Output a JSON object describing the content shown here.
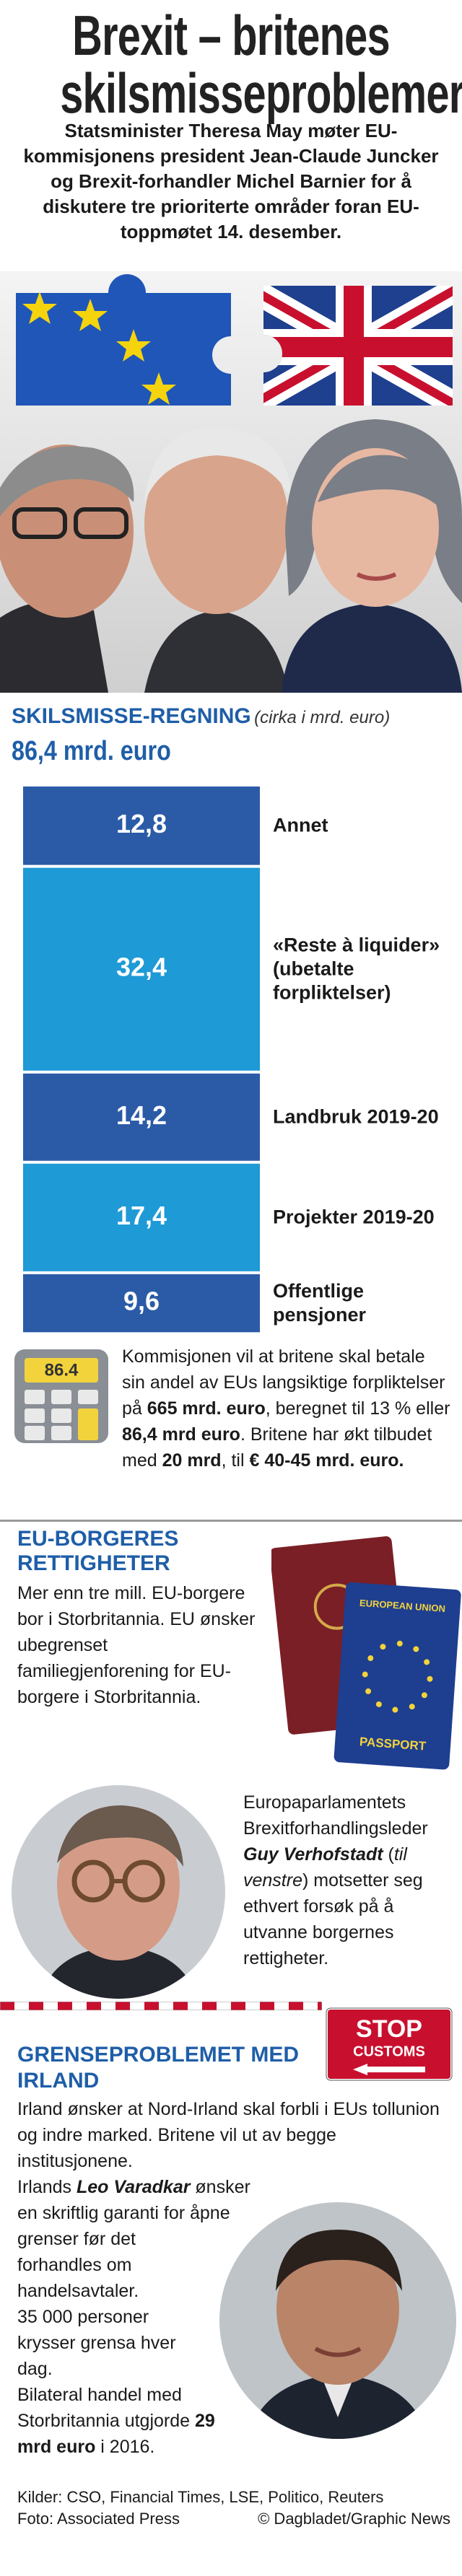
{
  "header": {
    "title_lines": [
      "Brexit – britenes",
      "skilsmisseproblemer"
    ],
    "intro": "Statsminister Theresa May møter EU-kommisjonens president Jean-Claude Juncker og Brexit-forhandler Michel Barnier for å diskutere tre prioriterte områder foran EU-toppmøtet 14. desember."
  },
  "chart_data": {
    "type": "bar",
    "stacked": true,
    "title": "SKILSMISSE-REGNING",
    "subtitle": "(cirka i mrd. euro)",
    "total": "86,4 mrd. euro",
    "categories": [
      "Annet",
      "«Reste à liquider» (ubetalte forpliktelser)",
      "Landbruk 2019-20",
      "Projekter 2019-20",
      "Offentlige pensjoner"
    ],
    "values": [
      12.8,
      32.4,
      14.2,
      17.4,
      9.6
    ],
    "value_labels": [
      "12,8",
      "32,4",
      "14,2",
      "17,4",
      "9,6"
    ],
    "colors": [
      "#2b5ba7",
      "#1e9ad6",
      "#2b5ba7",
      "#1e9ad6",
      "#2b5ba7"
    ]
  },
  "bill_note": {
    "calculator_display": "86.4",
    "runs": [
      {
        "text": "Kommisjonen vil at britene skal betale sin andel av EUs lang­siktige forpliktelser på ",
        "style": "normal"
      },
      {
        "text": "665 mrd. euro",
        "style": "bold"
      },
      {
        "text": ", beregnet til 13 % eller ",
        "style": "normal"
      },
      {
        "text": "86,4 mrd euro",
        "style": "bold"
      },
      {
        "text": ". Britene har økt tilbudet med ",
        "style": "normal"
      },
      {
        "text": "20 mrd",
        "style": "bold"
      },
      {
        "text": ", til ",
        "style": "normal"
      },
      {
        "text": "€ 40-45 mrd. euro.",
        "style": "bold"
      }
    ]
  },
  "citizens": {
    "title": "EU-BORGERES RETTIGHETER",
    "text": "Mer enn tre mill. EU-borgere bor i Storbritannia. EU ønsker ubegrenset familiegjenforening for EU-borgere i Storbritannia.",
    "passport_labels": [
      "EUROPEAN UNION",
      "PASSPORT"
    ],
    "caption": [
      {
        "text": "Europaparlamentets Brexitforhandlingsleder ",
        "style": "normal"
      },
      {
        "text": "Guy Verhofstadt",
        "style": "bold-italic"
      },
      {
        "text": " (",
        "style": "normal"
      },
      {
        "text": "til venstre",
        "style": "italic"
      },
      {
        "text": ") motsetter seg ethvert forsøk på å utvanne borgernes rettigheter.",
        "style": "normal"
      }
    ]
  },
  "border": {
    "sign": [
      "STOP",
      "CUSTOMS"
    ],
    "title": "GRENSEPROBLEMET MED IRLAND",
    "intro": "Irland ønsker at Nord-Irland skal forbli i EUs tollunion og indre marked. Britene vil ut av begge institusjonene.",
    "paragraphs": [
      [
        {
          "text": "Irlands ",
          "style": "normal"
        },
        {
          "text": "Leo Varadkar",
          "style": "bold-italic"
        },
        {
          "text": " ønsker en skriftlig garanti for åpne grenser før det forhandles om handelsavtaler.",
          "style": "normal"
        }
      ],
      [
        {
          "text": "35 000 personer krysser grensa hver dag.",
          "style": "normal"
        }
      ],
      [
        {
          "text": "Bilateral handel med Storbritannia utgjorde ",
          "style": "normal"
        },
        {
          "text": "29 mrd euro",
          "style": "bold"
        },
        {
          "text": " i 2016.",
          "style": "normal"
        }
      ]
    ]
  },
  "footer": {
    "sources": "Kilder: CSO, Financial Times, LSE, Politico, Reuters",
    "photo": "Foto: Associated Press",
    "credit": "© Dagbladet/Graphic News"
  }
}
